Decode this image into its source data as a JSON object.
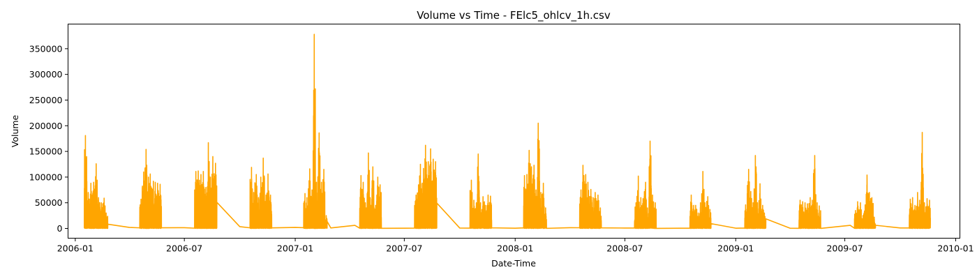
{
  "chart_data": {
    "type": "line",
    "title": "Volume vs Time - FElc5_ohlcv_1h.csv",
    "xlabel": "Date-Time",
    "ylabel": "Volume",
    "x_ticks": [
      "2006-01",
      "2006-07",
      "2007-01",
      "2007-07",
      "2008-01",
      "2008-07",
      "2009-01",
      "2009-07",
      "2010-01"
    ],
    "y_ticks": [
      0,
      50000,
      100000,
      150000,
      200000,
      250000,
      300000,
      350000
    ],
    "y_tick_labels": [
      "0",
      "50000",
      "100000",
      "150000",
      "200000",
      "250000",
      "300000",
      "350000"
    ],
    "xlim": [
      "2005-12-20",
      "2010-01-08"
    ],
    "ylim": [
      -19000,
      398000
    ],
    "grid": false,
    "line_color": "#FFA500",
    "series": [
      {
        "bursts": [
          {
            "start": "2006-01-16",
            "end": "2006-02-24",
            "peaks": [
              181000,
              70000,
              88000,
              90000,
              126000,
              60000,
              50000,
              59000,
              30000
            ]
          },
          {
            "start": "2006-04-18",
            "end": "2006-05-24",
            "peaks": [
              57000,
              110000,
              154000,
              100000,
              106000,
              92000,
              90000,
              88000,
              86000
            ]
          },
          {
            "start": "2006-07-18",
            "end": "2006-08-24",
            "peaks": [
              111000,
              112000,
              105000,
              111000,
              80000,
              167000,
              100000,
              140000,
              127000
            ]
          },
          {
            "start": "2006-10-18",
            "end": "2006-11-23",
            "peaks": [
              119000,
              70000,
              105000,
              60000,
              100000,
              137000,
              65000,
              106000,
              65000
            ]
          },
          {
            "start": "2007-01-15",
            "end": "2007-02-23",
            "peaks": [
              68000,
              60000,
              116000,
              75000,
              378000,
              90000,
              186000,
              90000,
              115000,
              25000
            ]
          },
          {
            "start": "2007-04-18",
            "end": "2007-05-24",
            "peaks": [
              103000,
              90000,
              50000,
              147000,
              60000,
              120000,
              45000,
              100000,
              85000
            ]
          },
          {
            "start": "2007-07-18",
            "end": "2007-08-24",
            "peaks": [
              65000,
              85000,
              125000,
              117000,
              162000,
              130000,
              155000,
              135000,
              130000
            ]
          },
          {
            "start": "2007-10-18",
            "end": "2007-11-23",
            "peaks": [
              94000,
              55000,
              50000,
              145000,
              50000,
              62000,
              45000,
              65000,
              63000
            ]
          },
          {
            "start": "2008-01-15",
            "end": "2008-02-22",
            "peaks": [
              103000,
              105000,
              152000,
              120000,
              123000,
              75000,
              205000,
              70000,
              88000,
              40000
            ]
          },
          {
            "start": "2008-04-17",
            "end": "2008-05-23",
            "peaks": [
              75000,
              123000,
              105000,
              90000,
              76000,
              60000,
              70000,
              65000,
              40000
            ]
          },
          {
            "start": "2008-07-17",
            "end": "2008-08-22",
            "peaks": [
              50000,
              102000,
              60000,
              58000,
              90000,
              40000,
              170000,
              65000,
              50000
            ]
          },
          {
            "start": "2008-10-17",
            "end": "2008-11-21",
            "peaks": [
              65000,
              45000,
              45000,
              30000,
              50000,
              111000,
              50000,
              62000,
              37000
            ]
          },
          {
            "start": "2009-01-16",
            "end": "2009-02-20",
            "peaks": [
              46000,
              115000,
              72000,
              50000,
              142000,
              50000,
              87000,
              45000,
              30000
            ]
          },
          {
            "start": "2009-04-16",
            "end": "2009-05-22",
            "peaks": [
              55000,
              52000,
              50000,
              48000,
              60000,
              55000,
              142000,
              50000,
              44000
            ]
          },
          {
            "start": "2009-07-17",
            "end": "2009-08-21",
            "peaks": [
              35000,
              52000,
              50000,
              25000,
              46000,
              104000,
              70000,
              60000,
              22000
            ]
          },
          {
            "start": "2009-10-16",
            "end": "2009-11-20",
            "peaks": [
              57000,
              60000,
              45000,
              70000,
              55000,
              187000,
              50000,
              58000,
              55000
            ]
          }
        ],
        "gaps": [
          {
            "date": "2006-04-01",
            "value": 2000
          },
          {
            "date": "2006-07-01",
            "value": 1500
          },
          {
            "date": "2006-10-01",
            "value": 3500
          },
          {
            "date": "2007-01-01",
            "value": 2000
          },
          {
            "date": "2007-03-01",
            "value": 1000
          },
          {
            "date": "2007-04-10",
            "value": 6000
          },
          {
            "date": "2007-07-01",
            "value": 500
          },
          {
            "date": "2007-10-01",
            "value": 800
          },
          {
            "date": "2008-01-01",
            "value": 500
          },
          {
            "date": "2008-04-01",
            "value": 1500
          },
          {
            "date": "2008-07-01",
            "value": 800
          },
          {
            "date": "2008-10-01",
            "value": 500
          },
          {
            "date": "2009-01-01",
            "value": 500
          },
          {
            "date": "2009-04-01",
            "value": 500
          },
          {
            "date": "2009-07-10",
            "value": 6000
          },
          {
            "date": "2009-10-01",
            "value": 1000
          }
        ]
      }
    ]
  }
}
